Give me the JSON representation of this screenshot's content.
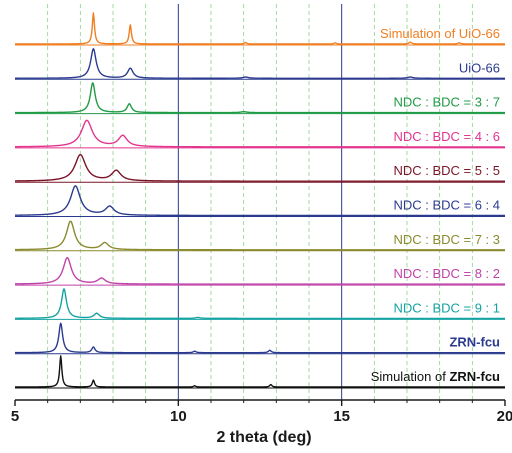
{
  "chart_data": {
    "type": "line",
    "xlabel": "2 theta (deg)",
    "ylabel": "",
    "xlim": [
      5,
      20
    ],
    "x_ticks": [
      5,
      10,
      15,
      20
    ],
    "minor_x_ticks": [
      6,
      7,
      8,
      9,
      11,
      12,
      13,
      14,
      16,
      17,
      18,
      19
    ],
    "reference_lines": [
      10,
      15
    ],
    "series": [
      {
        "label": "Simulation of UiO-66",
        "label_bold": "",
        "color": "#f07f24",
        "peaks": [
          {
            "x": 7.4,
            "h": 1.0,
            "w": 0.04
          },
          {
            "x": 8.53,
            "h": 0.62,
            "w": 0.04
          },
          {
            "x": 12.06,
            "h": 0.05,
            "w": 0.04
          },
          {
            "x": 14.8,
            "h": 0.04,
            "w": 0.04
          },
          {
            "x": 17.1,
            "h": 0.06,
            "w": 0.05
          },
          {
            "x": 18.6,
            "h": 0.04,
            "w": 0.05
          }
        ]
      },
      {
        "label": "UiO-66",
        "label_bold": "",
        "color": "#2b3a8f",
        "peaks": [
          {
            "x": 7.4,
            "h": 0.95,
            "w": 0.1
          },
          {
            "x": 8.53,
            "h": 0.32,
            "w": 0.1
          },
          {
            "x": 12.06,
            "h": 0.04,
            "w": 0.1
          },
          {
            "x": 17.1,
            "h": 0.04,
            "w": 0.1
          }
        ]
      },
      {
        "label": "NDC : BDC = 3 : 7",
        "label_bold": "",
        "color": "#1f9a45",
        "peaks": [
          {
            "x": 7.38,
            "h": 0.96,
            "w": 0.09
          },
          {
            "x": 8.5,
            "h": 0.28,
            "w": 0.08
          },
          {
            "x": 12.0,
            "h": 0.03,
            "w": 0.1
          }
        ]
      },
      {
        "label": "NDC : BDC = 4 : 6",
        "label_bold": "",
        "color": "#e3358f",
        "peaks": [
          {
            "x": 7.2,
            "h": 0.85,
            "w": 0.2
          },
          {
            "x": 8.3,
            "h": 0.35,
            "w": 0.16
          }
        ]
      },
      {
        "label": "NDC : BDC = 5 : 5",
        "label_bold": "",
        "color": "#7a1426",
        "peaks": [
          {
            "x": 7.0,
            "h": 0.85,
            "w": 0.2
          },
          {
            "x": 8.1,
            "h": 0.33,
            "w": 0.17
          }
        ]
      },
      {
        "label": "NDC : BDC = 6 : 4",
        "label_bold": "",
        "color": "#2b3a8f",
        "peaks": [
          {
            "x": 6.85,
            "h": 0.95,
            "w": 0.18
          },
          {
            "x": 7.9,
            "h": 0.28,
            "w": 0.16
          }
        ]
      },
      {
        "label": "NDC : BDC = 7 : 3",
        "label_bold": "",
        "color": "#8a8a2e",
        "peaks": [
          {
            "x": 6.7,
            "h": 0.92,
            "w": 0.15
          },
          {
            "x": 7.75,
            "h": 0.22,
            "w": 0.14
          }
        ]
      },
      {
        "label": "NDC : BDC = 8 : 2",
        "label_bold": "",
        "color": "#c043a8",
        "peaks": [
          {
            "x": 6.6,
            "h": 0.85,
            "w": 0.15
          },
          {
            "x": 7.65,
            "h": 0.18,
            "w": 0.14
          }
        ]
      },
      {
        "label": "NDC : BDC = 9 : 1",
        "label_bold": "",
        "color": "#15a2a2",
        "peaks": [
          {
            "x": 6.5,
            "h": 0.95,
            "w": 0.09
          },
          {
            "x": 7.5,
            "h": 0.16,
            "w": 0.1
          },
          {
            "x": 10.6,
            "h": 0.03,
            "w": 0.08
          }
        ]
      },
      {
        "label": "",
        "label_bold": "ZRN-fcu",
        "color": "#2b3a8f",
        "peaks": [
          {
            "x": 6.4,
            "h": 0.95,
            "w": 0.07
          },
          {
            "x": 7.4,
            "h": 0.18,
            "w": 0.06
          },
          {
            "x": 10.5,
            "h": 0.05,
            "w": 0.05
          },
          {
            "x": 12.8,
            "h": 0.08,
            "w": 0.05
          }
        ]
      },
      {
        "label": "Simulation of ",
        "label_bold": "ZRN-fcu",
        "color": "#111111",
        "peaks": [
          {
            "x": 6.4,
            "h": 1.0,
            "w": 0.04
          },
          {
            "x": 7.4,
            "h": 0.22,
            "w": 0.04
          },
          {
            "x": 10.5,
            "h": 0.04,
            "w": 0.04
          },
          {
            "x": 12.83,
            "h": 0.08,
            "w": 0.04
          }
        ]
      }
    ]
  }
}
